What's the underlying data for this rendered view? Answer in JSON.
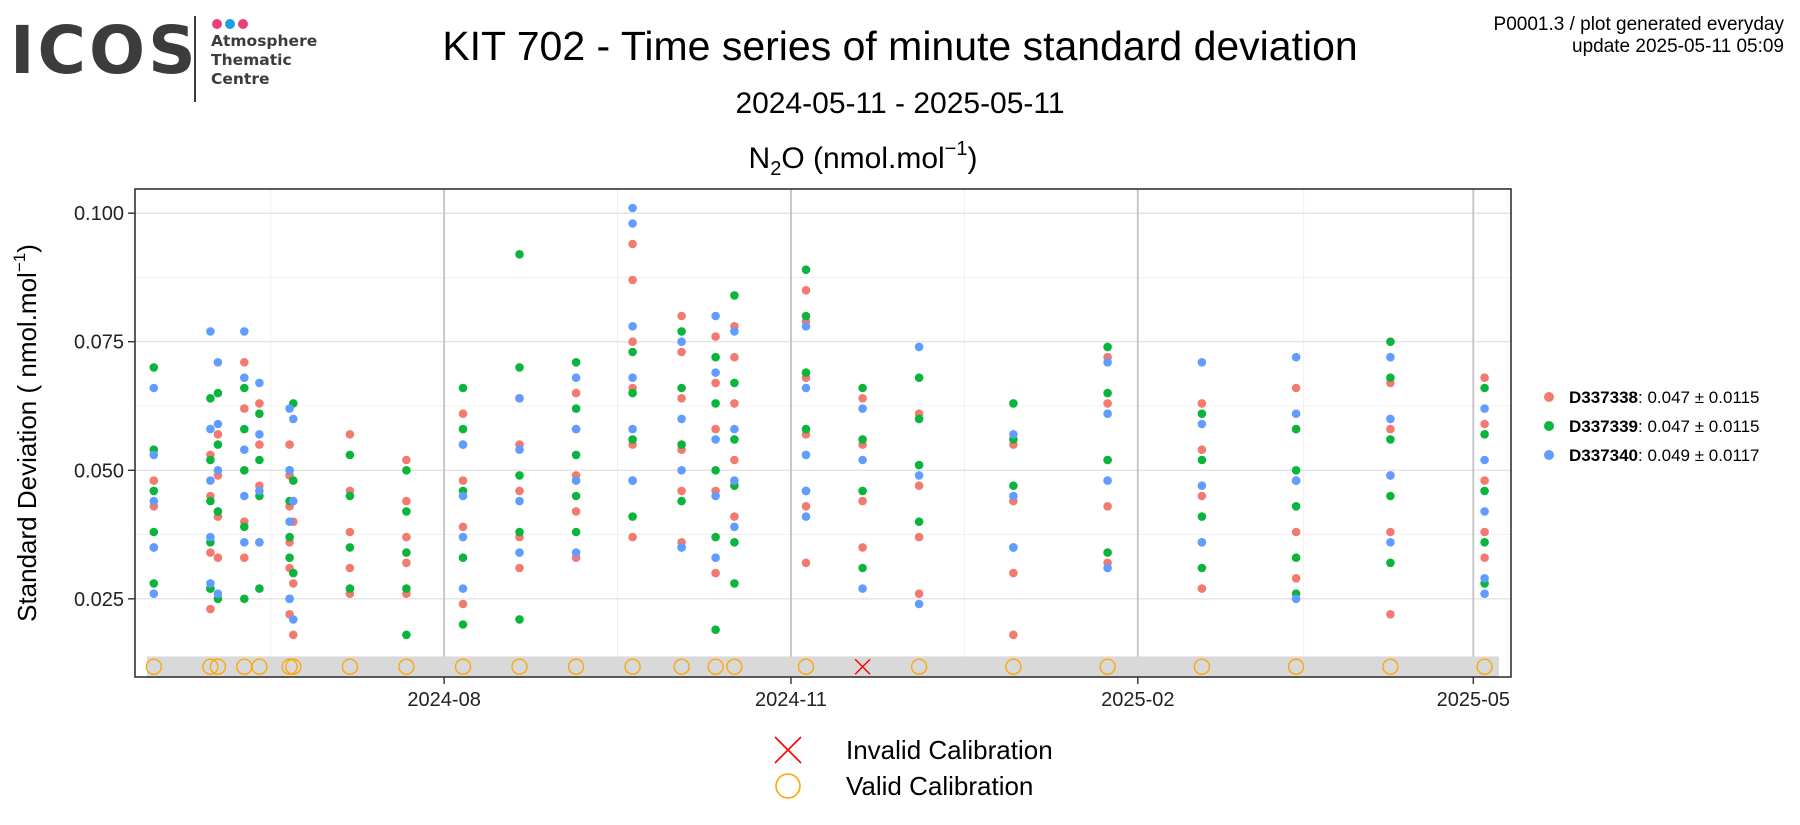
{
  "header": {
    "logo": {
      "word": "ICOS",
      "lines": [
        "Atmosphere",
        "Thematic",
        "Centre"
      ],
      "dot_colors": [
        "#e8407a",
        "#1a9ee6",
        "#e8407a"
      ]
    },
    "title": "KIT 702 - Time series of minute standard deviation",
    "subtitle": "2024-05-11 - 2025-05-11",
    "stamp_line1": "P0001.3 / plot generated everyday",
    "stamp_line2": "update  2025-05-11 05:09"
  },
  "chart_data": {
    "type": "scatter",
    "title": "N2O (nmol.mol-1)",
    "title_parts": {
      "base": "N",
      "sub": "2",
      "mid": "O (nmol.mol",
      "sup": "−1",
      "end": ")"
    },
    "ylabel_parts": {
      "base": "Standard Deviation ( nmol.mol",
      "sup": "−1",
      "end": ")"
    },
    "xlabel": "",
    "x_type": "date",
    "xlim": [
      "2024-05-11",
      "2025-05-11"
    ],
    "ylim": [
      0.0098,
      0.1047
    ],
    "x_ticks": [
      "2024-08-01",
      "2024-11-01",
      "2025-02-01",
      "2025-05-01"
    ],
    "x_tick_labels": [
      "2024-08",
      "2024-11",
      "2025-02",
      "2025-05"
    ],
    "y_ticks": [
      0.025,
      0.05,
      0.075,
      0.1
    ],
    "y_tick_labels": [
      "0.025",
      "0.050",
      "0.075",
      "0.100"
    ],
    "grid": true,
    "legend_position": "right",
    "series": [
      {
        "name": "D337338",
        "stats": "0.047 ± 0.0115",
        "color": "#f27a70",
        "x": [
          "2024-05-16",
          "2024-05-16",
          "2024-05-16",
          "2024-05-31",
          "2024-05-31",
          "2024-05-31",
          "2024-05-31",
          "2024-05-31",
          "2024-06-02",
          "2024-06-02",
          "2024-06-02",
          "2024-06-02",
          "2024-06-09",
          "2024-06-09",
          "2024-06-09",
          "2024-06-09",
          "2024-06-09",
          "2024-06-13",
          "2024-06-13",
          "2024-06-13",
          "2024-06-13",
          "2024-06-21",
          "2024-06-21",
          "2024-06-21",
          "2024-06-21",
          "2024-06-21",
          "2024-06-21",
          "2024-06-22",
          "2024-06-22",
          "2024-06-22",
          "2024-07-07",
          "2024-07-07",
          "2024-07-07",
          "2024-07-07",
          "2024-07-07",
          "2024-07-22",
          "2024-07-22",
          "2024-07-22",
          "2024-07-22",
          "2024-07-22",
          "2024-08-06",
          "2024-08-06",
          "2024-08-06",
          "2024-08-06",
          "2024-08-06",
          "2024-08-21",
          "2024-08-21",
          "2024-08-21",
          "2024-08-21",
          "2024-08-21",
          "2024-09-05",
          "2024-09-05",
          "2024-09-05",
          "2024-09-05",
          "2024-09-05",
          "2024-09-20",
          "2024-09-20",
          "2024-09-20",
          "2024-09-20",
          "2024-09-20",
          "2024-09-20",
          "2024-10-03",
          "2024-10-03",
          "2024-10-03",
          "2024-10-03",
          "2024-10-03",
          "2024-10-03",
          "2024-10-12",
          "2024-10-12",
          "2024-10-12",
          "2024-10-12",
          "2024-10-12",
          "2024-10-17",
          "2024-10-17",
          "2024-10-17",
          "2024-10-17",
          "2024-10-17",
          "2024-11-05",
          "2024-11-05",
          "2024-11-05",
          "2024-11-05",
          "2024-11-05",
          "2024-11-05",
          "2024-11-20",
          "2024-11-20",
          "2024-11-20",
          "2024-11-20",
          "2024-12-05",
          "2024-12-05",
          "2024-12-05",
          "2024-12-05",
          "2024-12-30",
          "2024-12-30",
          "2024-12-30",
          "2024-12-30",
          "2025-01-24",
          "2025-01-24",
          "2025-01-24",
          "2025-01-24",
          "2025-01-24",
          "2025-02-18",
          "2025-02-18",
          "2025-02-18",
          "2025-02-18",
          "2025-02-18",
          "2025-03-15",
          "2025-03-15",
          "2025-03-15",
          "2025-03-15",
          "2025-03-15",
          "2025-04-09",
          "2025-04-09",
          "2025-04-09",
          "2025-04-09",
          "2025-04-09",
          "2025-05-04",
          "2025-05-04",
          "2025-05-04",
          "2025-05-04",
          "2025-05-04"
        ],
        "y": [
          0.035,
          0.043,
          0.048,
          0.023,
          0.027,
          0.034,
          0.045,
          0.053,
          0.033,
          0.041,
          0.049,
          0.057,
          0.071,
          0.062,
          0.05,
          0.04,
          0.033,
          0.063,
          0.055,
          0.047,
          0.036,
          0.022,
          0.031,
          0.036,
          0.043,
          0.049,
          0.055,
          0.018,
          0.028,
          0.04,
          0.057,
          0.046,
          0.038,
          0.031,
          0.026,
          0.052,
          0.044,
          0.037,
          0.032,
          0.026,
          0.061,
          0.055,
          0.048,
          0.039,
          0.024,
          0.064,
          0.055,
          0.046,
          0.037,
          0.031,
          0.065,
          0.058,
          0.049,
          0.042,
          0.033,
          0.094,
          0.087,
          0.075,
          0.066,
          0.055,
          0.037,
          0.08,
          0.073,
          0.064,
          0.054,
          0.046,
          0.036,
          0.076,
          0.067,
          0.058,
          0.046,
          0.03,
          0.078,
          0.072,
          0.063,
          0.052,
          0.041,
          0.085,
          0.079,
          0.068,
          0.057,
          0.043,
          0.032,
          0.064,
          0.055,
          0.044,
          0.035,
          0.061,
          0.047,
          0.037,
          0.026,
          0.055,
          0.044,
          0.03,
          0.018,
          0.072,
          0.063,
          0.052,
          0.043,
          0.032,
          0.063,
          0.054,
          0.045,
          0.036,
          0.027,
          0.066,
          0.058,
          0.048,
          0.038,
          0.029,
          0.067,
          0.058,
          0.049,
          0.038,
          0.022,
          0.068,
          0.059,
          0.048,
          0.038,
          0.033
        ]
      },
      {
        "name": "D337339",
        "stats": "0.047 ± 0.0115",
        "color": "#0ab53c",
        "x": [
          "2024-05-16",
          "2024-05-16",
          "2024-05-16",
          "2024-05-16",
          "2024-05-16",
          "2024-05-31",
          "2024-05-31",
          "2024-05-31",
          "2024-05-31",
          "2024-05-31",
          "2024-06-02",
          "2024-06-02",
          "2024-06-02",
          "2024-06-02",
          "2024-06-09",
          "2024-06-09",
          "2024-06-09",
          "2024-06-09",
          "2024-06-09",
          "2024-06-13",
          "2024-06-13",
          "2024-06-13",
          "2024-06-13",
          "2024-06-21",
          "2024-06-21",
          "2024-06-21",
          "2024-06-21",
          "2024-06-21",
          "2024-06-22",
          "2024-06-22",
          "2024-06-22",
          "2024-07-07",
          "2024-07-07",
          "2024-07-07",
          "2024-07-07",
          "2024-07-22",
          "2024-07-22",
          "2024-07-22",
          "2024-07-22",
          "2024-07-22",
          "2024-08-06",
          "2024-08-06",
          "2024-08-06",
          "2024-08-06",
          "2024-08-06",
          "2024-08-21",
          "2024-08-21",
          "2024-08-21",
          "2024-08-21",
          "2024-08-21",
          "2024-09-05",
          "2024-09-05",
          "2024-09-05",
          "2024-09-05",
          "2024-09-05",
          "2024-09-20",
          "2024-09-20",
          "2024-09-20",
          "2024-09-20",
          "2024-09-20",
          "2024-10-03",
          "2024-10-03",
          "2024-10-03",
          "2024-10-03",
          "2024-10-03",
          "2024-10-12",
          "2024-10-12",
          "2024-10-12",
          "2024-10-12",
          "2024-10-12",
          "2024-10-17",
          "2024-10-17",
          "2024-10-17",
          "2024-10-17",
          "2024-10-17",
          "2024-10-17",
          "2024-11-05",
          "2024-11-05",
          "2024-11-05",
          "2024-11-05",
          "2024-11-05",
          "2024-11-20",
          "2024-11-20",
          "2024-11-20",
          "2024-11-20",
          "2024-12-05",
          "2024-12-05",
          "2024-12-05",
          "2024-12-05",
          "2024-12-30",
          "2024-12-30",
          "2024-12-30",
          "2024-12-30",
          "2025-01-24",
          "2025-01-24",
          "2025-01-24",
          "2025-01-24",
          "2025-02-18",
          "2025-02-18",
          "2025-02-18",
          "2025-02-18",
          "2025-03-15",
          "2025-03-15",
          "2025-03-15",
          "2025-03-15",
          "2025-03-15",
          "2025-04-09",
          "2025-04-09",
          "2025-04-09",
          "2025-04-09",
          "2025-04-09",
          "2025-05-04",
          "2025-05-04",
          "2025-05-04",
          "2025-05-04",
          "2025-05-04"
        ],
        "y": [
          0.07,
          0.054,
          0.046,
          0.038,
          0.028,
          0.064,
          0.052,
          0.044,
          0.036,
          0.027,
          0.065,
          0.055,
          0.042,
          0.025,
          0.066,
          0.058,
          0.05,
          0.039,
          0.025,
          0.061,
          0.052,
          0.045,
          0.027,
          0.05,
          0.044,
          0.037,
          0.033,
          0.025,
          0.063,
          0.048,
          0.03,
          0.053,
          0.045,
          0.035,
          0.027,
          0.05,
          0.042,
          0.034,
          0.027,
          0.018,
          0.066,
          0.058,
          0.046,
          0.033,
          0.02,
          0.092,
          0.07,
          0.049,
          0.038,
          0.021,
          0.071,
          0.062,
          0.053,
          0.045,
          0.038,
          0.073,
          0.065,
          0.056,
          0.048,
          0.041,
          0.077,
          0.066,
          0.055,
          0.044,
          0.035,
          0.072,
          0.063,
          0.05,
          0.037,
          0.019,
          0.084,
          0.067,
          0.056,
          0.047,
          0.036,
          0.028,
          0.089,
          0.08,
          0.069,
          0.058,
          0.046,
          0.066,
          0.056,
          0.046,
          0.031,
          0.068,
          0.06,
          0.051,
          0.04,
          0.063,
          0.056,
          0.047,
          0.035,
          0.074,
          0.065,
          0.052,
          0.034,
          0.061,
          0.052,
          0.041,
          0.031,
          0.058,
          0.05,
          0.043,
          0.033,
          0.026,
          0.075,
          0.068,
          0.056,
          0.045,
          0.032,
          0.066,
          0.057,
          0.046,
          0.036,
          0.028
        ]
      },
      {
        "name": "D337340",
        "stats": "0.049 ± 0.0117",
        "color": "#619cff",
        "x": [
          "2024-05-16",
          "2024-05-16",
          "2024-05-16",
          "2024-05-16",
          "2024-05-16",
          "2024-05-31",
          "2024-05-31",
          "2024-05-31",
          "2024-05-31",
          "2024-05-31",
          "2024-06-02",
          "2024-06-02",
          "2024-06-02",
          "2024-06-02",
          "2024-06-09",
          "2024-06-09",
          "2024-06-09",
          "2024-06-09",
          "2024-06-09",
          "2024-06-13",
          "2024-06-13",
          "2024-06-13",
          "2024-06-13",
          "2024-06-21",
          "2024-06-21",
          "2024-06-21",
          "2024-06-21",
          "2024-06-22",
          "2024-06-22",
          "2024-06-22",
          "2024-08-06",
          "2024-08-06",
          "2024-08-06",
          "2024-08-06",
          "2024-08-21",
          "2024-08-21",
          "2024-08-21",
          "2024-08-21",
          "2024-09-05",
          "2024-09-05",
          "2024-09-05",
          "2024-09-05",
          "2024-09-20",
          "2024-09-20",
          "2024-09-20",
          "2024-09-20",
          "2024-09-20",
          "2024-09-20",
          "2024-10-03",
          "2024-10-03",
          "2024-10-03",
          "2024-10-03",
          "2024-10-12",
          "2024-10-12",
          "2024-10-12",
          "2024-10-12",
          "2024-10-12",
          "2024-10-17",
          "2024-10-17",
          "2024-10-17",
          "2024-10-17",
          "2024-11-05",
          "2024-11-05",
          "2024-11-05",
          "2024-11-05",
          "2024-11-05",
          "2024-11-20",
          "2024-11-20",
          "2024-11-20",
          "2024-12-05",
          "2024-12-05",
          "2024-12-05",
          "2024-12-30",
          "2024-12-30",
          "2024-12-30",
          "2025-01-24",
          "2025-01-24",
          "2025-01-24",
          "2025-01-24",
          "2025-02-18",
          "2025-02-18",
          "2025-02-18",
          "2025-02-18",
          "2025-03-15",
          "2025-03-15",
          "2025-03-15",
          "2025-03-15",
          "2025-04-09",
          "2025-04-09",
          "2025-04-09",
          "2025-04-09",
          "2025-05-04",
          "2025-05-04",
          "2025-05-04",
          "2025-05-04",
          "2025-05-04"
        ],
        "y": [
          0.066,
          0.053,
          0.044,
          0.035,
          0.026,
          0.077,
          0.058,
          0.048,
          0.037,
          0.028,
          0.071,
          0.059,
          0.05,
          0.026,
          0.077,
          0.068,
          0.054,
          0.045,
          0.036,
          0.067,
          0.057,
          0.046,
          0.036,
          0.062,
          0.05,
          0.04,
          0.025,
          0.06,
          0.044,
          0.021,
          0.055,
          0.045,
          0.037,
          0.027,
          0.064,
          0.054,
          0.044,
          0.034,
          0.068,
          0.058,
          0.048,
          0.034,
          0.101,
          0.098,
          0.078,
          0.068,
          0.058,
          0.048,
          0.075,
          0.06,
          0.05,
          0.035,
          0.08,
          0.069,
          0.056,
          0.045,
          0.033,
          0.077,
          0.058,
          0.048,
          0.039,
          0.078,
          0.066,
          0.053,
          0.046,
          0.041,
          0.062,
          0.052,
          0.027,
          0.074,
          0.049,
          0.024,
          0.057,
          0.045,
          0.035,
          0.071,
          0.061,
          0.048,
          0.031,
          0.071,
          0.059,
          0.047,
          0.036,
          0.072,
          0.061,
          0.048,
          0.025,
          0.072,
          0.06,
          0.049,
          0.036,
          0.062,
          0.052,
          0.042,
          0.029,
          0.026
        ]
      }
    ],
    "calibrations": {
      "band_ylim": [
        0.0098,
        0.0138
      ],
      "valid": {
        "label": "Valid Calibration",
        "color": "#ffa500",
        "x": [
          "2024-05-16",
          "2024-05-31",
          "2024-06-02",
          "2024-06-09",
          "2024-06-13",
          "2024-06-21",
          "2024-06-22",
          "2024-07-07",
          "2024-07-22",
          "2024-08-06",
          "2024-08-21",
          "2024-09-05",
          "2024-09-20",
          "2024-10-03",
          "2024-10-12",
          "2024-10-17",
          "2024-11-05",
          "2024-12-05",
          "2024-12-30",
          "2025-01-24",
          "2025-02-18",
          "2025-03-15",
          "2025-04-09",
          "2025-05-04"
        ],
        "y": [
          0.0118,
          0.0118,
          0.0118,
          0.0118,
          0.0118,
          0.0118,
          0.0118,
          0.0118,
          0.0118,
          0.0118,
          0.0118,
          0.0118,
          0.0118,
          0.0118,
          0.0118,
          0.0118,
          0.0118,
          0.0118,
          0.0118,
          0.0118,
          0.0118,
          0.0118,
          0.0118,
          0.0118
        ]
      },
      "invalid": {
        "label": "Invalid Calibration",
        "color": "#ff0000",
        "x": [
          "2024-11-20"
        ],
        "y": [
          0.0118
        ]
      }
    }
  }
}
